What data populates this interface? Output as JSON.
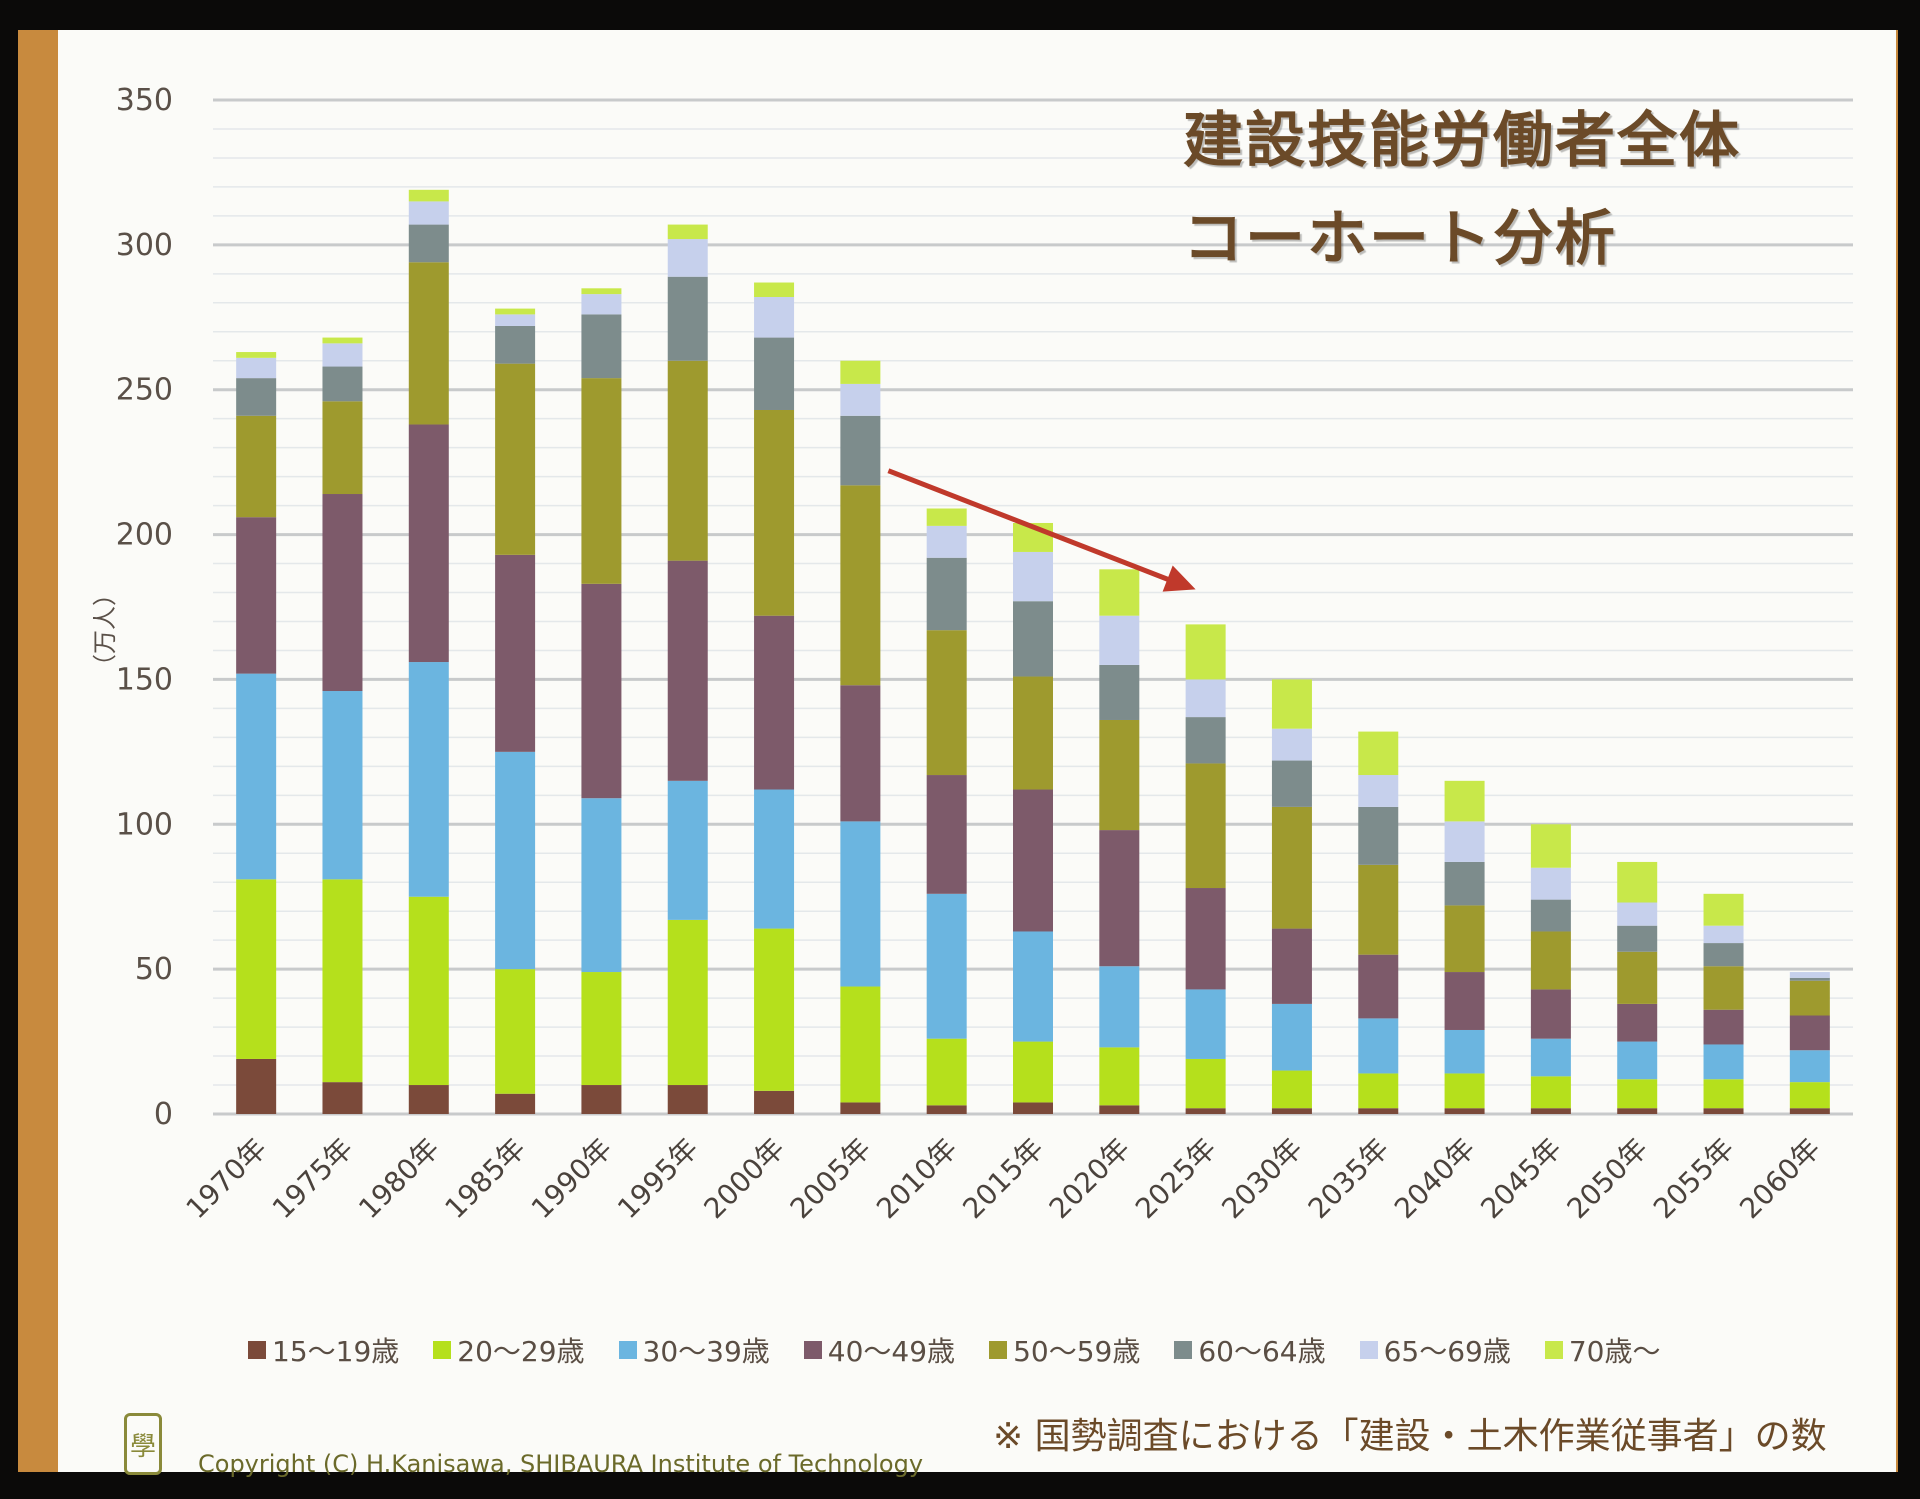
{
  "title": {
    "line1": "建設技能労働者全体",
    "line2": "コーホート分析"
  },
  "footnote": "※ 国勢調査における「建設・土木作業従事者」の数",
  "copyright": "Copyright (C) H.Kanisawa, SHIBAURA Institute of  Technology",
  "logo_icon": "university-crest-icon",
  "annotation": {
    "type": "arrow",
    "color": "#c0392b",
    "from_category": "2005年",
    "to_category": "2025年"
  },
  "chart_data": {
    "type": "bar",
    "stacked": true,
    "title": "建設技能労働者全体 コーホート分析",
    "xlabel": "",
    "ylabel": "（万人）",
    "ylim": [
      0,
      350
    ],
    "yticks": [
      0,
      50,
      100,
      150,
      200,
      250,
      300,
      350
    ],
    "grid": true,
    "legend_position": "bottom",
    "categories": [
      "1970年",
      "1975年",
      "1980年",
      "1985年",
      "1990年",
      "1995年",
      "2000年",
      "2005年",
      "2010年",
      "2015年",
      "2020年",
      "2025年",
      "2030年",
      "2035年",
      "2040年",
      "2045年",
      "2050年",
      "2055年",
      "2060年"
    ],
    "series": [
      {
        "name": "15〜19歳",
        "color": "#7b4a3a",
        "values": [
          19,
          11,
          10,
          7,
          10,
          10,
          8,
          4,
          3,
          4,
          3,
          2,
          2,
          2,
          2,
          2,
          2,
          2,
          2
        ]
      },
      {
        "name": "20〜29歳",
        "color": "#b5e01c",
        "values": [
          62,
          70,
          65,
          43,
          39,
          57,
          56,
          40,
          23,
          21,
          20,
          17,
          13,
          12,
          12,
          11,
          10,
          10,
          9
        ]
      },
      {
        "name": "30〜39歳",
        "color": "#6bb5e0",
        "values": [
          71,
          65,
          81,
          75,
          60,
          48,
          48,
          57,
          50,
          38,
          28,
          24,
          23,
          19,
          15,
          13,
          13,
          12,
          11
        ]
      },
      {
        "name": "40〜49歳",
        "color": "#7d5a6a",
        "values": [
          54,
          68,
          82,
          68,
          74,
          76,
          60,
          47,
          41,
          49,
          47,
          35,
          26,
          22,
          20,
          17,
          13,
          12,
          12
        ]
      },
      {
        "name": "50〜59歳",
        "color": "#9e9a2e",
        "values": [
          35,
          32,
          56,
          66,
          71,
          69,
          71,
          69,
          50,
          39,
          38,
          43,
          42,
          31,
          23,
          20,
          18,
          15,
          12
        ]
      },
      {
        "name": "60〜64歳",
        "color": "#7d8c8c",
        "values": [
          13,
          12,
          13,
          13,
          22,
          29,
          25,
          24,
          25,
          26,
          19,
          16,
          16,
          20,
          15,
          11,
          9,
          8,
          1
        ]
      },
      {
        "name": "65〜69歳",
        "color": "#c6d0ec",
        "values": [
          7,
          8,
          8,
          4,
          7,
          13,
          14,
          11,
          11,
          17,
          17,
          13,
          11,
          11,
          14,
          11,
          8,
          6,
          2
        ]
      },
      {
        "name": "70歳〜",
        "color": "#c8e84a",
        "values": [
          2,
          2,
          4,
          2,
          2,
          5,
          5,
          8,
          6,
          10,
          16,
          19,
          17,
          15,
          14,
          15,
          14,
          11,
          0
        ]
      }
    ]
  }
}
